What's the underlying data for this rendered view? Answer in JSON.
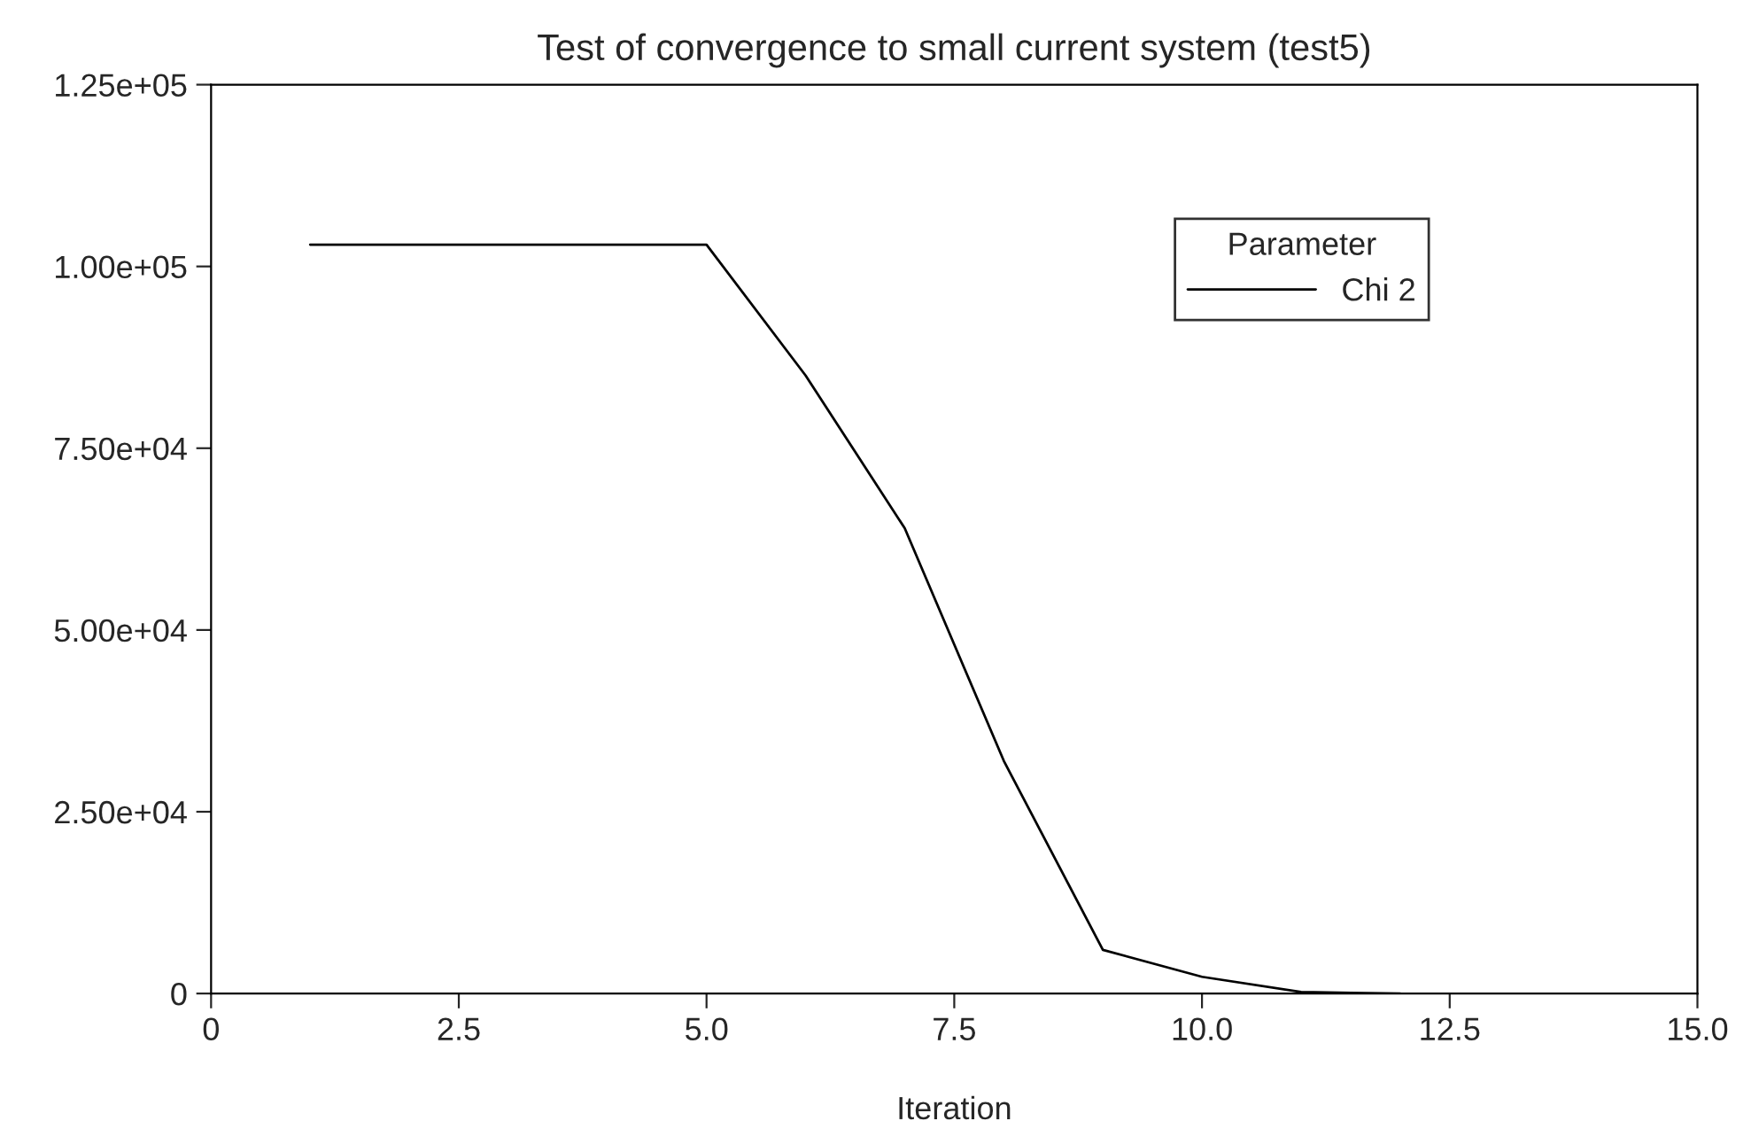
{
  "chart_data": {
    "type": "line",
    "title": "Test of convergence to small current system (test5)",
    "xlabel": "Iteration",
    "legend_title": "Parameter",
    "x": [
      1,
      2,
      3,
      4,
      5,
      6,
      7,
      8,
      9,
      10,
      11,
      12
    ],
    "series": [
      {
        "name": "Chi 2",
        "color": "#000000",
        "values": [
          103000,
          103000,
          103000,
          103000,
          103000,
          85000,
          64000,
          32000,
          6000,
          2300,
          200,
          0
        ]
      }
    ],
    "xlim": [
      0,
      15
    ],
    "xticks": [
      0,
      2.5,
      {
        "value": 5,
        "label": "5.0"
      },
      7.5,
      {
        "value": 10,
        "label": "10.0"
      },
      12.5,
      {
        "value": 15,
        "label": "15.0"
      }
    ],
    "ylim": [
      0,
      125000
    ],
    "yticks": [
      {
        "value": 0,
        "label": "0"
      },
      {
        "value": 25000,
        "label": "2.50e+04"
      },
      {
        "value": 50000,
        "label": "5.00e+04"
      },
      {
        "value": 75000,
        "label": "7.50e+04"
      },
      {
        "value": 100000,
        "label": "1.00e+05"
      },
      {
        "value": 125000,
        "label": "1.25e+05"
      }
    ],
    "grid": false,
    "legend": "top right",
    "marker": "none",
    "line_style": "solid"
  }
}
